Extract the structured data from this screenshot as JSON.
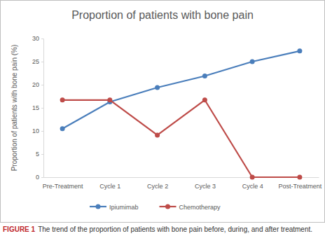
{
  "chart_data": {
    "type": "line",
    "title": "Proportion of patients with bone pain",
    "y_label": "Proportion of patients with bone pain (%)",
    "categories": [
      "Pre-Treatment",
      "Cycle 1",
      "Cycle 2",
      "Cycle 3",
      "Cycle 4",
      "Post-Treatment"
    ],
    "series": [
      {
        "name": "Ipiumimab",
        "color": "#4a7ebb",
        "marker": "circle",
        "values": [
          10.5,
          16.3,
          19.4,
          21.9,
          25.0,
          27.3
        ]
      },
      {
        "name": "Chemotherapy",
        "color": "#be4b48",
        "marker": "circle",
        "values": [
          16.7,
          16.7,
          9.1,
          16.7,
          0,
          0
        ]
      }
    ],
    "ylim": [
      0,
      30
    ],
    "yticks": [
      0,
      5,
      10,
      15,
      20,
      25,
      30
    ],
    "grid": false,
    "legend": "bottom",
    "caption_label": "FIGURE 1",
    "caption": "The trend of the proportion of patients with bone pain before, during, and after treatment."
  }
}
